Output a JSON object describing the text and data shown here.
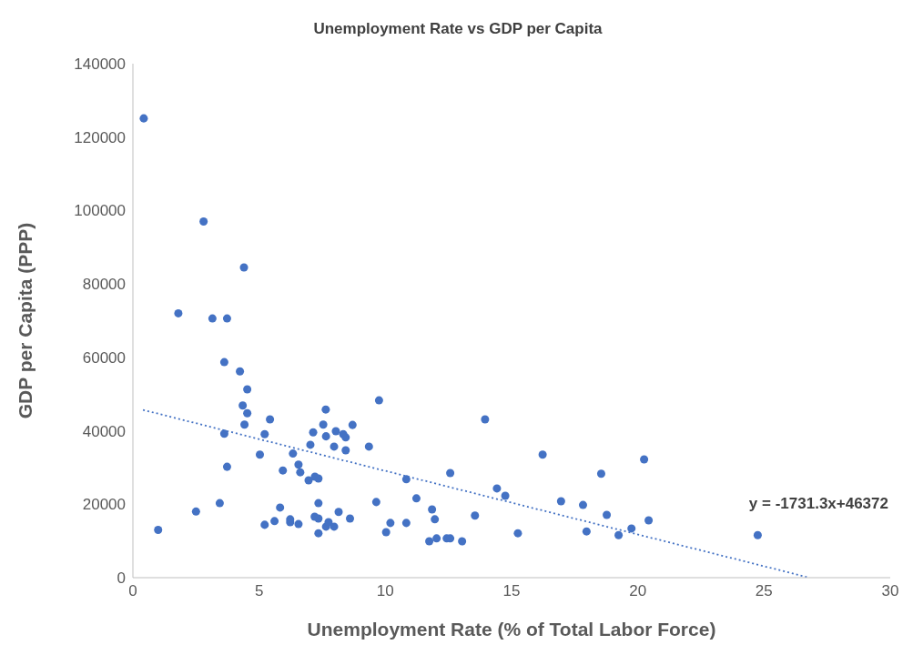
{
  "chart_data": {
    "type": "scatter",
    "title": "Unemployment Rate vs GDP per Capita",
    "xlabel": "Unemployment Rate (% of Total Labor Force)",
    "ylabel": "GDP per Capita (PPP)",
    "xlim": [
      0,
      30
    ],
    "xticks": [
      0,
      5,
      10,
      15,
      20,
      25,
      30
    ],
    "ylim": [
      0,
      140000
    ],
    "yticks": [
      0,
      20000,
      40000,
      60000,
      80000,
      100000,
      120000,
      140000
    ],
    "grid": false,
    "legend": false,
    "marker": "circle",
    "annotations": [
      "y = -1731.3x+46372"
    ],
    "series": [
      {
        "color": "#4472c4",
        "x": [
          0.43,
          1.0,
          1.8,
          2.5,
          2.8,
          3.15,
          3.73,
          4.4,
          3.44,
          3.62,
          3.62,
          3.73,
          4.24,
          4.35,
          4.42,
          4.53,
          4.53,
          5.03,
          5.22,
          5.22,
          5.43,
          5.61,
          5.83,
          5.94,
          6.23,
          6.23,
          6.34,
          6.56,
          6.63,
          6.56,
          6.96,
          7.03,
          7.14,
          7.21,
          7.35,
          7.35,
          7.2,
          7.35,
          7.35,
          7.64,
          7.54,
          7.65,
          7.65,
          7.75,
          7.97,
          8.15,
          7.97,
          8.04,
          8.33,
          8.43,
          8.43,
          8.6,
          8.7,
          9.35,
          9.75,
          9.64,
          10.03,
          10.2,
          10.83,
          10.83,
          11.23,
          11.85,
          11.96,
          11.74,
          12.03,
          13.95,
          16.23,
          12.57,
          14.42,
          14.75,
          15.25,
          13.55,
          12.43,
          12.57,
          13.04,
          16.96,
          17.83,
          17.97,
          18.55,
          18.77,
          19.24,
          19.75,
          20.25,
          20.43,
          24.75
        ],
        "values": [
          125100,
          13000,
          72000,
          18000,
          97000,
          70600,
          70600,
          84500,
          20300,
          58700,
          39200,
          30200,
          56200,
          46900,
          41700,
          51300,
          44800,
          33500,
          39100,
          14400,
          43100,
          15400,
          19100,
          29200,
          15900,
          15100,
          33800,
          30800,
          28700,
          14600,
          26500,
          36200,
          39600,
          27500,
          27000,
          20300,
          16600,
          16100,
          12100,
          45800,
          41700,
          38500,
          13900,
          15100,
          13900,
          17900,
          35700,
          39900,
          39100,
          38200,
          34700,
          16100,
          41600,
          35700,
          48300,
          20600,
          12400,
          14900,
          26800,
          14900,
          21600,
          18600,
          15900,
          9900,
          10700,
          43100,
          33500,
          28500,
          24300,
          22300,
          12100,
          16900,
          10700,
          10700,
          9900,
          20800,
          19800,
          12600,
          28300,
          17100,
          11600,
          13400,
          32200,
          15600,
          11600
        ]
      },
      {
        "type": "line",
        "color": "#4472c4",
        "line_style": "dotted",
        "marker": "none",
        "x": [
          0.4,
          26.8
        ],
        "values": [
          45700,
          0
        ]
      }
    ]
  }
}
